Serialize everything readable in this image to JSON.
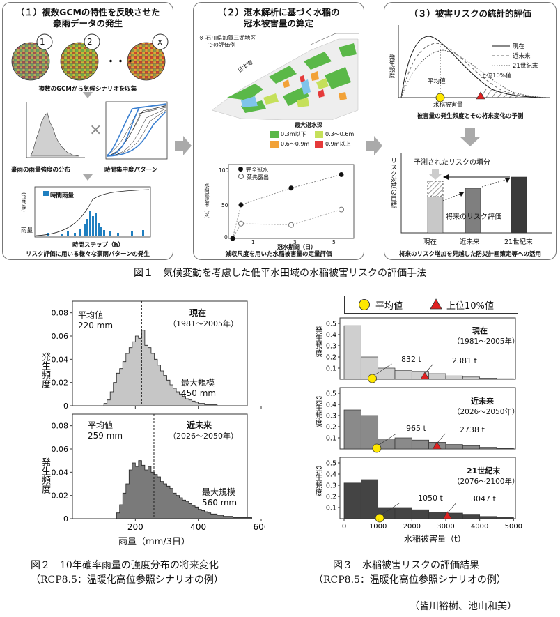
{
  "fig1": {
    "caption": "図１　気候変動を考慮した低平水田域の水稲被害リスクの評価手法",
    "p1": {
      "title_line1": "（１）複数GCMの特性を反映させた",
      "title_line2": "豪雨データの発生",
      "globe_labels": [
        "1",
        "2",
        "x"
      ],
      "dots": "・・・",
      "gcm_note": "複数のGCMから気候シナリオを収集",
      "dist_label": "豪雨の雨量強度の分布",
      "cross": "×",
      "pattern_label": "時間集中度パターン",
      "hourly_legend": "時間雨量",
      "ylabel_top": "(mm/h)",
      "ylabel": "雨量",
      "xlabel": "時間ステップ（h）",
      "bottom_note": "リスク評価に用いる様々な豪雨パターンの発生"
    },
    "p2": {
      "title_line1": "（２）湛水解析に基づく水稲の",
      "title_line2": "冠水被害量の算定",
      "map_note_line1": "※ 石川県加賀三湖地区",
      "map_note_line2": "での評価例",
      "sea_label": "日本海",
      "legend_title": "最大湛水深",
      "legend": [
        {
          "label": "0.3m以下",
          "color": "#5ab848"
        },
        {
          "label": "0.3～0.6m",
          "color": "#c5e05a"
        },
        {
          "label": "0.6～0.9m",
          "color": "#f2a238"
        },
        {
          "label": "0.9m以上",
          "color": "#e53a3a"
        }
      ],
      "graph_legend": [
        "完全冠水",
        "葉先露出"
      ],
      "graph_ylabel": "水稲減収率（%）",
      "graph_xlabel": "冠水期間（日）",
      "graph_yticks": [
        "100",
        "50",
        "0"
      ],
      "graph_xticks": [
        "1",
        "3",
        "5"
      ],
      "bottom_note": "減収尺度を用いた水稲被害量の定量評価"
    },
    "p3": {
      "title": "（３）被害リスクの統計的評価",
      "legend": [
        "現在",
        "近未来",
        "21世紀末"
      ],
      "ylabel": "発生頻度",
      "mean_label": "平均値",
      "top10_label": "上位10%値",
      "xlabel": "水稲被害量",
      "note1": "被害量の発生頻度とその将来変化の予測",
      "bar_ylabel": "リスク対策の目標",
      "increase_label": "予測されたリスクの増分",
      "future_label": "将来のリスク評価",
      "bar_cats": [
        "現在",
        "近未来",
        "21世紀末"
      ],
      "bottom_note": "将来のリスク増加を見越した防災計画策定等への活用"
    }
  },
  "fig2": {
    "caption_line1": "図２　10年確率雨量の強度分布の将来変化",
    "caption_line2": "（RCP8.5：温暖化高位参照シナリオの例）",
    "ylabel": "発生頻度",
    "xlabel": "雨量（mm/3日）",
    "yticks": [
      "0",
      "0.02",
      "0.04",
      "0.06",
      "0.08"
    ],
    "xticks": [
      "200",
      "400",
      "600"
    ],
    "top": {
      "period": "現在",
      "years": "（1981～2005年）",
      "mean_label": "平均値",
      "mean": "220 mm",
      "max_label": "最大規模",
      "max": "450 mm"
    },
    "bottom": {
      "period": "近未来",
      "years": "（2026～2050年）",
      "mean_label": "平均値",
      "mean": "259 mm",
      "max_label": "最大規模",
      "max": "560 mm"
    }
  },
  "fig3": {
    "caption_line1": "図３　水稲被害リスクの評価結果",
    "caption_line2": "（RCP8.5：温暖化高位参照シナリオの例）",
    "legend_mean": "平均値",
    "legend_top10": "上位10%値",
    "ylabel": "発生頻度",
    "xlabel": "水稲被害量（t）",
    "yticks": [
      "0.1",
      "0.2",
      "0.3",
      "0.4",
      "0.5"
    ],
    "xticks": [
      "0",
      "1000",
      "2000",
      "3000",
      "4000",
      "5000"
    ],
    "panels": [
      {
        "period": "現在",
        "years": "（1981～2005年）",
        "mean": "832 t",
        "top10": "2381 t"
      },
      {
        "period": "近未来",
        "years": "（2026～2050年）",
        "mean": "965 t",
        "top10": "2738 t"
      },
      {
        "period": "21世紀末",
        "years": "（2076～2100年）",
        "mean": "1050 t",
        "top10": "3047 t"
      }
    ]
  },
  "authors": "（皆川裕樹、池山和美）",
  "chart_data": [
    {
      "type": "bar",
      "title": "現在",
      "xlabel": "雨量（mm/3日）",
      "ylabel": "発生頻度",
      "ylim": [
        0,
        0.09
      ],
      "xlim": [
        0,
        600
      ],
      "mean": 220,
      "x": [
        100,
        110,
        120,
        130,
        140,
        150,
        160,
        170,
        180,
        190,
        200,
        210,
        220,
        230,
        240,
        250,
        260,
        270,
        280,
        290,
        300,
        310,
        320,
        330,
        340,
        350,
        360,
        370,
        380,
        390,
        400,
        410,
        420,
        430,
        440,
        450
      ],
      "values": [
        0.002,
        0.005,
        0.012,
        0.02,
        0.028,
        0.032,
        0.038,
        0.045,
        0.05,
        0.055,
        0.06,
        0.058,
        0.065,
        0.052,
        0.05,
        0.045,
        0.04,
        0.035,
        0.03,
        0.026,
        0.022,
        0.018,
        0.015,
        0.012,
        0.01,
        0.008,
        0.006,
        0.005,
        0.004,
        0.003,
        0.002,
        0.002,
        0.001,
        0.001,
        0.001,
        0.001
      ]
    },
    {
      "type": "bar",
      "title": "近未来",
      "xlabel": "雨量（mm/3日）",
      "ylabel": "発生頻度",
      "ylim": [
        0,
        0.09
      ],
      "xlim": [
        0,
        600
      ],
      "mean": 259,
      "x": [
        140,
        150,
        160,
        170,
        180,
        190,
        200,
        210,
        220,
        230,
        240,
        250,
        260,
        270,
        280,
        290,
        300,
        310,
        320,
        330,
        340,
        350,
        360,
        370,
        380,
        390,
        400,
        410,
        420,
        430,
        440,
        450,
        460,
        470,
        480,
        490,
        500,
        510,
        520,
        530,
        540,
        550,
        560
      ],
      "values": [
        0.005,
        0.012,
        0.022,
        0.03,
        0.042,
        0.048,
        0.045,
        0.05,
        0.046,
        0.042,
        0.045,
        0.04,
        0.038,
        0.036,
        0.032,
        0.03,
        0.028,
        0.026,
        0.022,
        0.02,
        0.018,
        0.016,
        0.015,
        0.013,
        0.011,
        0.01,
        0.008,
        0.007,
        0.006,
        0.005,
        0.004,
        0.004,
        0.003,
        0.003,
        0.002,
        0.002,
        0.002,
        0.001,
        0.001,
        0.001,
        0.001,
        0.001,
        0.001
      ]
    },
    {
      "type": "bar",
      "title": "現在",
      "xlabel": "水稲被害量（t）",
      "ylabel": "発生頻度",
      "ylim": [
        0,
        0.5
      ],
      "x": [
        0,
        500,
        1000,
        1500,
        2000,
        2500,
        3000,
        3500,
        4000,
        4500
      ],
      "values": [
        0.48,
        0.2,
        0.1,
        0.08,
        0.07,
        0.05,
        0.03,
        0.02,
        0.01,
        0.005
      ],
      "mean": 832,
      "top10": 2381
    },
    {
      "type": "bar",
      "title": "近未来",
      "xlabel": "水稲被害量（t）",
      "ylabel": "発生頻度",
      "ylim": [
        0,
        0.5
      ],
      "x": [
        0,
        500,
        1000,
        1500,
        2000,
        2500,
        3000,
        3500,
        4000,
        4500
      ],
      "values": [
        0.35,
        0.3,
        0.09,
        0.1,
        0.08,
        0.06,
        0.04,
        0.03,
        0.015,
        0.005
      ],
      "mean": 965,
      "top10": 2738
    },
    {
      "type": "bar",
      "title": "21世紀末",
      "xlabel": "水稲被害量（t）",
      "ylabel": "発生頻度",
      "ylim": [
        0,
        0.5
      ],
      "x": [
        0,
        500,
        1000,
        1500,
        2000,
        2500,
        3000,
        3500,
        4000,
        4500
      ],
      "values": [
        0.32,
        0.35,
        0.1,
        0.1,
        0.08,
        0.06,
        0.05,
        0.04,
        0.02,
        0.01
      ],
      "mean": 1050,
      "top10": 3047
    }
  ]
}
